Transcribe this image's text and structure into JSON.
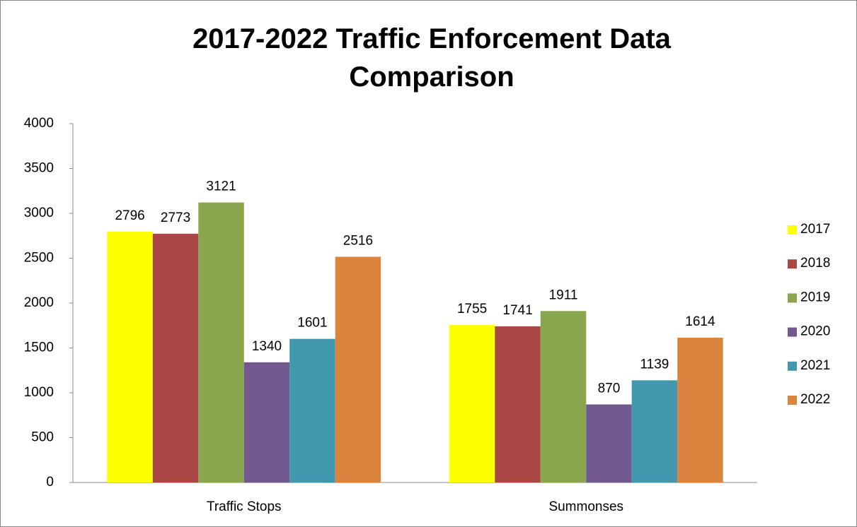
{
  "chart_data": {
    "type": "bar",
    "title": "2017-2022 Traffic Enforcement Data Comparison",
    "categories": [
      "Traffic Stops",
      "Summonses"
    ],
    "series": [
      {
        "name": "2017",
        "color": "#ffff00",
        "values": [
          2796,
          1755
        ]
      },
      {
        "name": "2018",
        "color": "#aa4643",
        "values": [
          2773,
          1741
        ]
      },
      {
        "name": "2019",
        "color": "#89a54e",
        "values": [
          3121,
          1911
        ]
      },
      {
        "name": "2020",
        "color": "#71588f",
        "values": [
          1340,
          870
        ]
      },
      {
        "name": "2021",
        "color": "#4198af",
        "values": [
          1601,
          1139
        ]
      },
      {
        "name": "2022",
        "color": "#db843d",
        "values": [
          2516,
          1614
        ]
      }
    ],
    "ylim": [
      0,
      4000
    ],
    "yticks": [
      0,
      500,
      1000,
      1500,
      2000,
      2500,
      3000,
      3500,
      4000
    ],
    "grid": false,
    "legend": "right",
    "data_labels": true
  }
}
